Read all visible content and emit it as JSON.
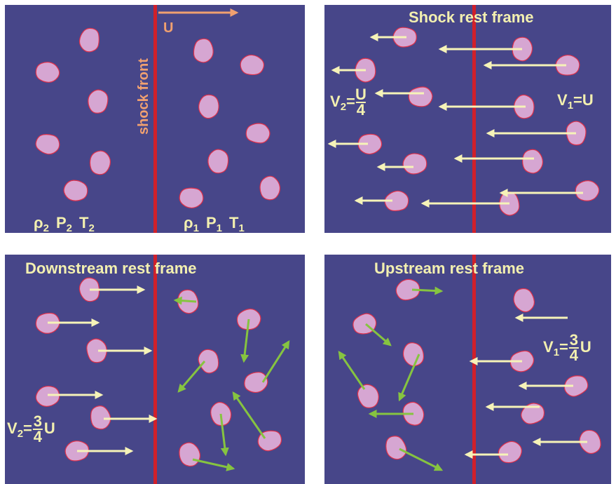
{
  "panels": [
    {
      "arrow_label": "U",
      "shock_label": "shock front",
      "left_state": [
        {
          "t": "ρ",
          "sub": "2"
        },
        {
          "t": "P",
          "sub": "2"
        },
        {
          "t": "T",
          "sub": "2"
        }
      ],
      "right_state": [
        {
          "t": "ρ",
          "sub": "1"
        },
        {
          "t": "P",
          "sub": "1"
        },
        {
          "t": "T",
          "sub": "1"
        }
      ]
    },
    {
      "title": "Shock rest frame",
      "v1": {
        "symbol": "V",
        "sub": "1",
        "eq": "=",
        "value": "U"
      },
      "v2": {
        "symbol": "V",
        "sub": "2",
        "eq": "=",
        "num": "U",
        "den": "4"
      }
    },
    {
      "title": "Downstream rest frame",
      "v2": {
        "symbol": "V",
        "sub": "2",
        "eq": "=",
        "num": "3",
        "den": "4",
        "after": "U"
      }
    },
    {
      "title": "Upstream rest frame",
      "v1": {
        "symbol": "V",
        "sub": "1",
        "eq": "=",
        "num": "3",
        "den": "4",
        "after": "U"
      }
    }
  ]
}
